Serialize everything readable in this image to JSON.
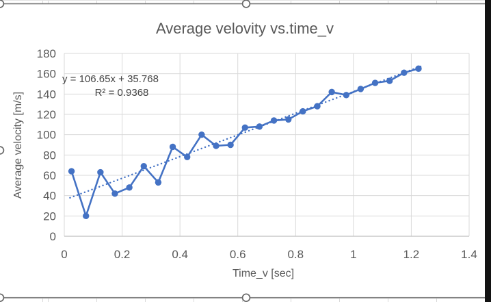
{
  "chart_data": {
    "type": "line",
    "title": "Average velovity vs.time_v",
    "xlabel": "Time_v [sec]",
    "ylabel": "Average velocity [m/s]",
    "xlim": [
      0,
      1.4
    ],
    "ylim": [
      0,
      180
    ],
    "x_ticks": [
      0,
      0.2,
      0.4,
      0.6,
      0.8,
      1,
      1.2,
      1.4
    ],
    "y_ticks": [
      0,
      20,
      40,
      60,
      80,
      100,
      120,
      140,
      160,
      180
    ],
    "grid": true,
    "legend": false,
    "series": [
      {
        "color": "#4472C4",
        "marker": "circle",
        "x": [
          0.025,
          0.075,
          0.125,
          0.175,
          0.225,
          0.275,
          0.325,
          0.375,
          0.425,
          0.475,
          0.525,
          0.575,
          0.625,
          0.675,
          0.725,
          0.775,
          0.825,
          0.875,
          0.925,
          0.975,
          1.025,
          1.075,
          1.125,
          1.175,
          1.225
        ],
        "y": [
          64,
          20,
          63,
          42,
          48,
          69,
          53,
          88,
          78,
          100,
          89,
          90,
          107,
          108,
          114,
          115,
          123,
          128,
          142,
          139,
          145,
          151,
          153,
          161,
          165
        ]
      }
    ],
    "trendline": {
      "equation": "y = 106.65x + 35.768",
      "r_squared": "R² = 0.9368",
      "slope": 106.65,
      "intercept": 35.768,
      "style": "dotted",
      "color": "#4472C4",
      "x_range": [
        0.02,
        1.235
      ]
    }
  },
  "colors": {
    "series_blue": "#4472C4",
    "text_grey": "#595959",
    "gridline": "#D9D9D9",
    "axis_line": "#BFBFBF"
  }
}
